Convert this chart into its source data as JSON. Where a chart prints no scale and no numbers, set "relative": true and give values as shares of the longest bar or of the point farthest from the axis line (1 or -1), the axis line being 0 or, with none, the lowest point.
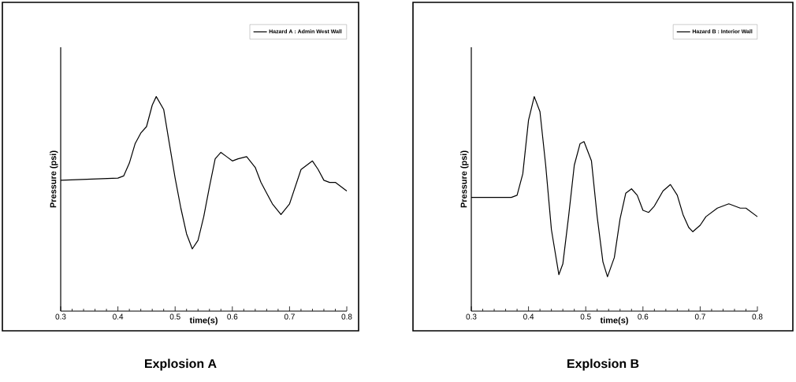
{
  "chart_data": [
    {
      "type": "line",
      "title": "Explosion A",
      "xlabel": "time(s)",
      "ylabel": "Pressure (psi)",
      "relative": true,
      "legend": "top right",
      "xlim": [
        0.3,
        0.8
      ],
      "xticks": [
        0.3,
        0.4,
        0.5,
        0.6,
        0.7,
        0.8
      ],
      "x": [
        0.3,
        0.4,
        0.41,
        0.42,
        0.43,
        0.44,
        0.45,
        0.46,
        0.467,
        0.48,
        0.49,
        0.5,
        0.51,
        0.52,
        0.53,
        0.54,
        0.55,
        0.56,
        0.57,
        0.58,
        0.59,
        0.6,
        0.61,
        0.625,
        0.64,
        0.65,
        0.66,
        0.67,
        0.685,
        0.7,
        0.71,
        0.72,
        0.74,
        0.75,
        0.76,
        0.77,
        0.78,
        0.79,
        0.8
      ],
      "series": [
        {
          "name": "Hazard A : Admin West Wall",
          "color": "#000000",
          "values": [
            0.61,
            0.62,
            0.63,
            0.69,
            0.78,
            0.83,
            0.86,
            0.96,
            1,
            0.94,
            0.78,
            0.62,
            0.48,
            0.36,
            0.29,
            0.33,
            0.44,
            0.58,
            0.71,
            0.74,
            0.72,
            0.7,
            0.71,
            0.72,
            0.67,
            0.6,
            0.55,
            0.5,
            0.45,
            0.5,
            0.58,
            0.66,
            0.7,
            0.66,
            0.61,
            0.6,
            0.6,
            0.58,
            0.56
          ]
        }
      ]
    },
    {
      "type": "line",
      "title": "Explosion B",
      "xlabel": "time(s)",
      "ylabel": "Pressure (psi)",
      "relative": true,
      "legend": "top right",
      "xlim": [
        0.3,
        0.8
      ],
      "xticks": [
        0.3,
        0.4,
        0.5,
        0.6,
        0.7,
        0.8
      ],
      "x": [
        0.3,
        0.37,
        0.38,
        0.39,
        0.4,
        0.41,
        0.42,
        0.43,
        0.44,
        0.453,
        0.46,
        0.47,
        0.48,
        0.49,
        0.497,
        0.51,
        0.52,
        0.53,
        0.538,
        0.55,
        0.56,
        0.57,
        0.58,
        0.59,
        0.6,
        0.61,
        0.62,
        0.635,
        0.648,
        0.66,
        0.67,
        0.68,
        0.687,
        0.7,
        0.71,
        0.73,
        0.75,
        0.77,
        0.78,
        0.8
      ],
      "series": [
        {
          "name": "Hazard B : Interior Wall",
          "color": "#000000",
          "values": [
            0.53,
            0.53,
            0.54,
            0.64,
            0.89,
            1,
            0.93,
            0.68,
            0.38,
            0.17,
            0.22,
            0.44,
            0.68,
            0.78,
            0.79,
            0.7,
            0.44,
            0.23,
            0.16,
            0.25,
            0.43,
            0.55,
            0.57,
            0.54,
            0.47,
            0.46,
            0.49,
            0.56,
            0.59,
            0.54,
            0.45,
            0.39,
            0.37,
            0.4,
            0.44,
            0.48,
            0.5,
            0.48,
            0.48,
            0.44
          ]
        }
      ]
    }
  ]
}
